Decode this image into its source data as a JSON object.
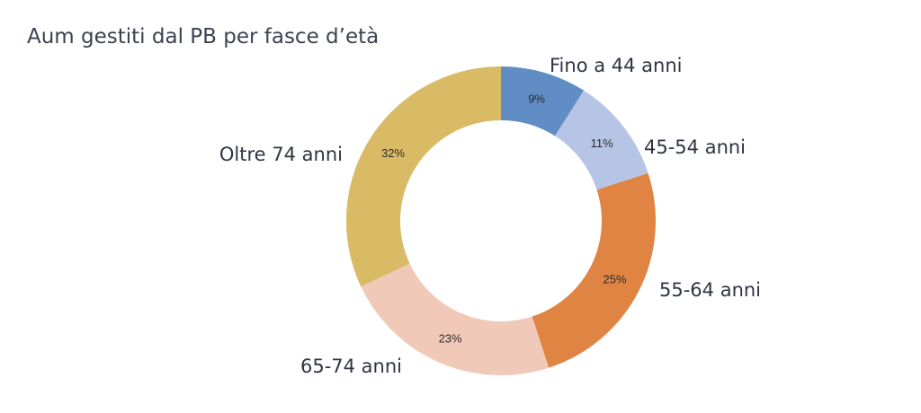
{
  "chart_data": {
    "type": "pie",
    "title": "Aum gestiti dal PB per fasce d’età",
    "donut": true,
    "start_angle_deg": 0,
    "direction": "clockwise",
    "legend": "none",
    "slices": [
      {
        "label": "Fino a 44 anni",
        "value": 9,
        "value_label": "9%",
        "color": "#5f8dc4"
      },
      {
        "label": "45-54 anni",
        "value": 11,
        "value_label": "11%",
        "color": "#b6c5e6"
      },
      {
        "label": "55-64 anni",
        "value": 25,
        "value_label": "25%",
        "color": "#e08443"
      },
      {
        "label": "65-74 anni",
        "value": 23,
        "value_label": "23%",
        "color": "#f0c9b9"
      },
      {
        "label": "Oltre 74 anni",
        "value": 32,
        "value_label": "32%",
        "color": "#d9bb66"
      }
    ]
  }
}
